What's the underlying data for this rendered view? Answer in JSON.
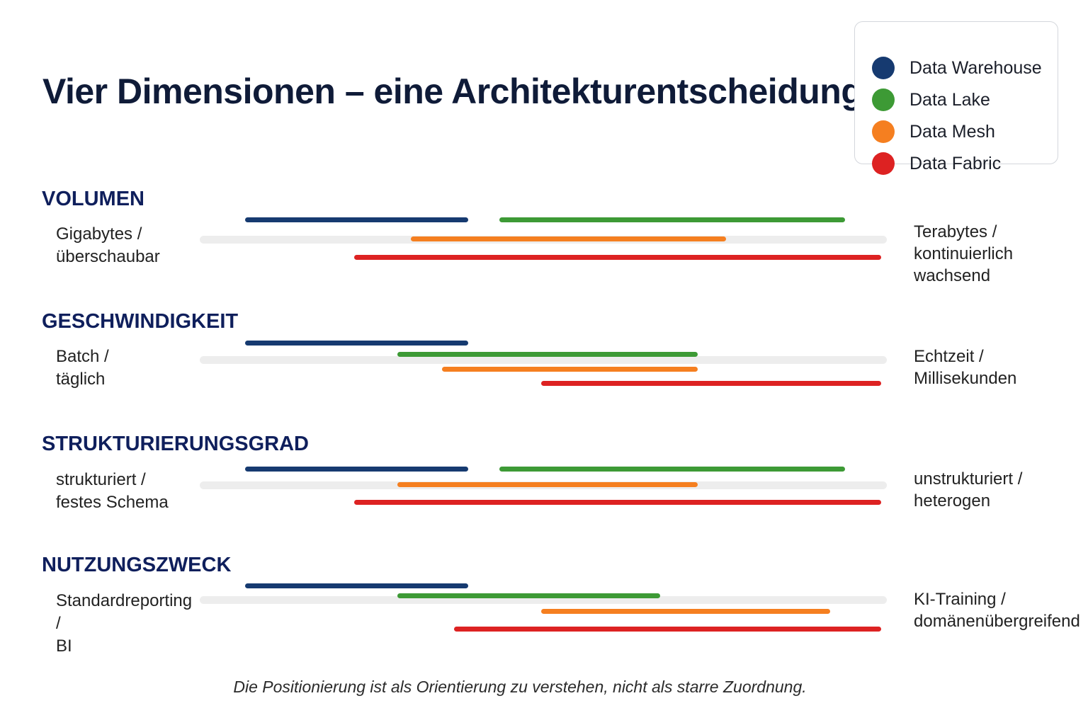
{
  "title": "Vier Dimensionen – eine Architekturentscheidung",
  "legend": [
    {
      "label": "Data Warehouse",
      "color": "#163a70"
    },
    {
      "label": "Data Lake",
      "color": "#3d9a35"
    },
    {
      "label": "Data Mesh",
      "color": "#f57f20"
    },
    {
      "label": "Data Fabric",
      "color": "#dd2222"
    }
  ],
  "dimensions": [
    {
      "title": "VOLUMEN",
      "left_label": "Gigabytes /\nüberschaubar",
      "right_label": "Terabytes /\nkontinuierlich\nwachsend",
      "ranges": [
        {
          "series": "Data Warehouse",
          "from": 0.066,
          "to": 0.391
        },
        {
          "series": "Data Lake",
          "from": 0.436,
          "to": 0.939
        },
        {
          "series": "Data Mesh",
          "from": 0.307,
          "to": 0.766
        },
        {
          "series": "Data Fabric",
          "from": 0.225,
          "to": 0.992
        }
      ]
    },
    {
      "title": "GESCHWINDIGKEIT",
      "left_label": "Batch /\ntäglich",
      "right_label": "Echtzeit /\nMillisekunden",
      "ranges": [
        {
          "series": "Data Warehouse",
          "from": 0.066,
          "to": 0.391
        },
        {
          "series": "Data Lake",
          "from": 0.288,
          "to": 0.725
        },
        {
          "series": "Data Mesh",
          "from": 0.353,
          "to": 0.725
        },
        {
          "series": "Data Fabric",
          "from": 0.497,
          "to": 0.992
        }
      ]
    },
    {
      "title": "STRUKTURIERUNGSGRAD",
      "left_label": "strukturiert /\nfestes Schema",
      "right_label": "unstrukturiert /\nheterogen",
      "ranges": [
        {
          "series": "Data Warehouse",
          "from": 0.066,
          "to": 0.391
        },
        {
          "series": "Data Lake",
          "from": 0.436,
          "to": 0.939
        },
        {
          "series": "Data Mesh",
          "from": 0.288,
          "to": 0.725
        },
        {
          "series": "Data Fabric",
          "from": 0.225,
          "to": 0.992
        }
      ]
    },
    {
      "title": "NUTZUNGSZWECK",
      "left_label": "Standardreporting /\nBI",
      "right_label": "KI-Training /\ndomänenübergreifend",
      "ranges": [
        {
          "series": "Data Warehouse",
          "from": 0.066,
          "to": 0.391
        },
        {
          "series": "Data Lake",
          "from": 0.288,
          "to": 0.67
        },
        {
          "series": "Data Mesh",
          "from": 0.497,
          "to": 0.918
        },
        {
          "series": "Data Fabric",
          "from": 0.37,
          "to": 0.992
        }
      ]
    }
  ],
  "footnote": "Die Positionierung ist als Orientierung zu verstehen, nicht als starre Zuordnung."
}
